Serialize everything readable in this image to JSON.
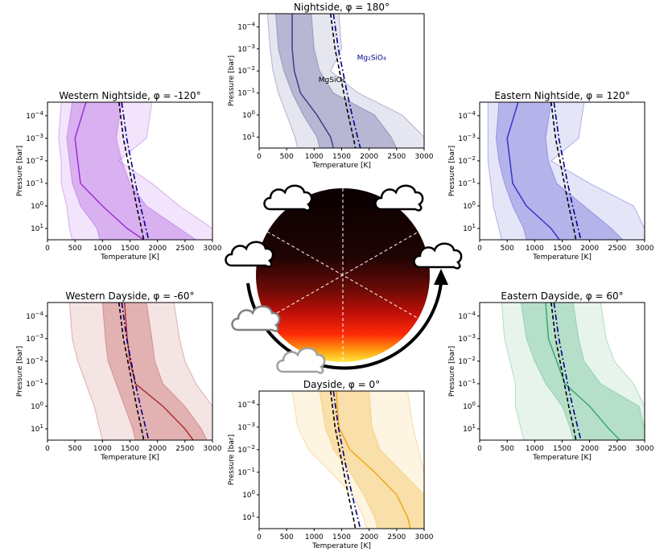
{
  "chart_data": {
    "type": "line",
    "layout": "six temperature-pressure panels arranged around a central planet disk",
    "shared_axes": {
      "xlabel": "Temperature [K]",
      "ylabel": "Pressure [bar]",
      "xlim": [
        0,
        3000
      ],
      "x_ticks": [
        "0",
        "500",
        "1000",
        "1500",
        "2000",
        "2500",
        "3000"
      ],
      "ylim_log10": [
        1.5,
        -4.6
      ],
      "y_scale": "log",
      "y_inverted": true,
      "y_tick_exponents": [
        "-4",
        "-3",
        "-2",
        "-1",
        "0",
        "1"
      ]
    },
    "condensation_curves": [
      {
        "name": "MgSiO₃",
        "style": "dashed",
        "color": "#000000",
        "points": [
          [
            1300,
            -4.6
          ],
          [
            1380,
            -3
          ],
          [
            1460,
            -2
          ],
          [
            1540,
            -1
          ],
          [
            1620,
            0
          ],
          [
            1710,
            1
          ],
          [
            1750,
            1.5
          ]
        ]
      },
      {
        "name": "Mg₂SiO₄",
        "style": "dashdot",
        "color": "#00008b",
        "points": [
          [
            1350,
            -4.6
          ],
          [
            1440,
            -3
          ],
          [
            1520,
            -2
          ],
          [
            1600,
            -1
          ],
          [
            1690,
            0
          ],
          [
            1790,
            1
          ],
          [
            1840,
            1.5
          ]
        ]
      }
    ],
    "panels": [
      {
        "title": "Nightside, φ = 180°",
        "color": "#3d3d8a",
        "show_labels": true,
        "median": [
          [
            600,
            -4.6
          ],
          [
            600,
            -3
          ],
          [
            640,
            -2
          ],
          [
            750,
            -1
          ],
          [
            1050,
            0
          ],
          [
            1300,
            1
          ],
          [
            1350,
            1.5
          ]
        ],
        "inner": [
          [
            300,
            -4.6
          ],
          [
            350,
            -3
          ],
          [
            450,
            -2
          ],
          [
            600,
            -1
          ],
          [
            800,
            0
          ],
          [
            1050,
            1
          ],
          [
            1100,
            1.5
          ]
        ],
        "inner_hi": [
          [
            950,
            -4.6
          ],
          [
            1000,
            -3
          ],
          [
            1100,
            -2
          ],
          [
            1350,
            -1
          ],
          [
            2100,
            0
          ],
          [
            2400,
            1
          ],
          [
            2500,
            1.5
          ]
        ],
        "outer_lo": [
          [
            150,
            -4.6
          ],
          [
            200,
            -3
          ],
          [
            250,
            -2
          ],
          [
            350,
            -1
          ],
          [
            500,
            0
          ],
          [
            650,
            1
          ],
          [
            700,
            1.5
          ]
        ],
        "outer_hi": [
          [
            1450,
            -4.6
          ],
          [
            1500,
            -3
          ],
          [
            1300,
            -2
          ],
          [
            1800,
            -1
          ],
          [
            2600,
            0
          ],
          [
            3000,
            1
          ],
          [
            3000,
            1.5
          ]
        ]
      },
      {
        "title": "Western Nightside, φ = -120°",
        "color": "#9b30d9",
        "median": [
          [
            700,
            -4.6
          ],
          [
            500,
            -3
          ],
          [
            550,
            -2
          ],
          [
            600,
            -1
          ],
          [
            1000,
            0
          ],
          [
            1450,
            1
          ],
          [
            1750,
            1.5
          ]
        ],
        "inner": [
          [
            450,
            -4.6
          ],
          [
            350,
            -3
          ],
          [
            400,
            -2
          ],
          [
            450,
            -1
          ],
          [
            600,
            0
          ],
          [
            900,
            1
          ],
          [
            950,
            1.5
          ]
        ],
        "inner_hi": [
          [
            1350,
            -4.6
          ],
          [
            1250,
            -3
          ],
          [
            1350,
            -2
          ],
          [
            1500,
            -1
          ],
          [
            1800,
            0
          ],
          [
            2400,
            1
          ],
          [
            2700,
            1.5
          ]
        ],
        "outer_lo": [
          [
            250,
            -4.6
          ],
          [
            200,
            -3
          ],
          [
            250,
            -2
          ],
          [
            250,
            -1
          ],
          [
            350,
            0
          ],
          [
            400,
            1
          ],
          [
            450,
            1.5
          ]
        ],
        "outer_hi": [
          [
            1900,
            -4.6
          ],
          [
            1800,
            -3
          ],
          [
            1300,
            -2
          ],
          [
            1900,
            -1
          ],
          [
            2400,
            0
          ],
          [
            3000,
            1
          ],
          [
            3000,
            1.5
          ]
        ]
      },
      {
        "title": "Eastern Nightside, φ = 120°",
        "color": "#3535c9",
        "median": [
          [
            700,
            -4.6
          ],
          [
            500,
            -3
          ],
          [
            550,
            -2
          ],
          [
            600,
            -1
          ],
          [
            850,
            0
          ],
          [
            1300,
            1
          ],
          [
            1450,
            1.5
          ]
        ],
        "inner": [
          [
            350,
            -4.6
          ],
          [
            300,
            -3
          ],
          [
            350,
            -2
          ],
          [
            450,
            -1
          ],
          [
            600,
            0
          ],
          [
            800,
            1
          ],
          [
            850,
            1.5
          ]
        ],
        "inner_hi": [
          [
            1300,
            -4.6
          ],
          [
            1200,
            -3
          ],
          [
            1250,
            -2
          ],
          [
            1400,
            -1
          ],
          [
            1900,
            0
          ],
          [
            2400,
            1
          ],
          [
            2600,
            1.5
          ]
        ],
        "outer_lo": [
          [
            150,
            -4.6
          ],
          [
            150,
            -3
          ],
          [
            150,
            -2
          ],
          [
            200,
            -1
          ],
          [
            250,
            0
          ],
          [
            350,
            1
          ],
          [
            400,
            1.5
          ]
        ],
        "outer_hi": [
          [
            1900,
            -4.6
          ],
          [
            1800,
            -3
          ],
          [
            1300,
            -2
          ],
          [
            2000,
            -1
          ],
          [
            2800,
            0
          ],
          [
            3000,
            1
          ],
          [
            3000,
            1.5
          ]
        ]
      },
      {
        "title": "Western Dayside, φ = -60°",
        "color": "#b03030",
        "median": [
          [
            1400,
            -4.6
          ],
          [
            1450,
            -3
          ],
          [
            1500,
            -2
          ],
          [
            1600,
            -1
          ],
          [
            2100,
            0
          ],
          [
            2500,
            1
          ],
          [
            2650,
            1.5
          ]
        ],
        "inner": [
          [
            1000,
            -4.6
          ],
          [
            1050,
            -3
          ],
          [
            1100,
            -2
          ],
          [
            1250,
            -1
          ],
          [
            1400,
            0
          ],
          [
            1550,
            1
          ],
          [
            1600,
            1.5
          ]
        ],
        "inner_hi": [
          [
            1800,
            -4.6
          ],
          [
            1900,
            -3
          ],
          [
            1950,
            -2
          ],
          [
            2100,
            -1
          ],
          [
            2500,
            0
          ],
          [
            2800,
            1
          ],
          [
            2900,
            1.5
          ]
        ],
        "outer_lo": [
          [
            400,
            -4.6
          ],
          [
            450,
            -3
          ],
          [
            550,
            -2
          ],
          [
            700,
            -1
          ],
          [
            850,
            0
          ],
          [
            950,
            1
          ],
          [
            1000,
            1.5
          ]
        ],
        "outer_hi": [
          [
            2300,
            -4.6
          ],
          [
            2400,
            -3
          ],
          [
            2500,
            -2
          ],
          [
            2700,
            -1
          ],
          [
            3000,
            0
          ],
          [
            3000,
            1
          ],
          [
            3000,
            1.5
          ]
        ]
      },
      {
        "title": "Eastern Dayside, φ = 60°",
        "color": "#3aa870",
        "median": [
          [
            1200,
            -4.6
          ],
          [
            1250,
            -3
          ],
          [
            1400,
            -2
          ],
          [
            1550,
            -1
          ],
          [
            2000,
            0
          ],
          [
            2350,
            1
          ],
          [
            2550,
            1.5
          ]
        ],
        "inner": [
          [
            750,
            -4.6
          ],
          [
            850,
            -3
          ],
          [
            1000,
            -2
          ],
          [
            1200,
            -1
          ],
          [
            1500,
            0
          ],
          [
            1650,
            1
          ],
          [
            1700,
            1.5
          ]
        ],
        "inner_hi": [
          [
            1700,
            -4.6
          ],
          [
            1800,
            -3
          ],
          [
            1900,
            -2
          ],
          [
            2200,
            -1
          ],
          [
            2900,
            0
          ],
          [
            3000,
            1
          ],
          [
            3000,
            1.5
          ]
        ],
        "outer_lo": [
          [
            400,
            -4.6
          ],
          [
            450,
            -3
          ],
          [
            550,
            -2
          ],
          [
            650,
            -1
          ],
          [
            650,
            0
          ],
          [
            750,
            1
          ],
          [
            800,
            1.5
          ]
        ],
        "outer_hi": [
          [
            2200,
            -4.6
          ],
          [
            2300,
            -3
          ],
          [
            2450,
            -2
          ],
          [
            2800,
            -1
          ],
          [
            3000,
            0
          ],
          [
            3000,
            1
          ],
          [
            3000,
            1.5
          ]
        ]
      },
      {
        "title": "Dayside, φ = 0°",
        "color": "#f0a818",
        "median": [
          [
            1400,
            -4.6
          ],
          [
            1450,
            -3
          ],
          [
            1650,
            -2
          ],
          [
            2100,
            -1
          ],
          [
            2500,
            0
          ],
          [
            2700,
            1
          ],
          [
            2750,
            1.5
          ]
        ],
        "inner": [
          [
            1100,
            -4.6
          ],
          [
            1200,
            -3
          ],
          [
            1350,
            -2
          ],
          [
            1650,
            -1
          ],
          [
            1900,
            0
          ],
          [
            2100,
            1
          ],
          [
            2150,
            1.5
          ]
        ],
        "inner_hi": [
          [
            2000,
            -4.6
          ],
          [
            2050,
            -3
          ],
          [
            2200,
            -2
          ],
          [
            2600,
            -1
          ],
          [
            3000,
            0
          ],
          [
            3000,
            1
          ],
          [
            3000,
            1.5
          ]
        ],
        "outer_lo": [
          [
            600,
            -4.6
          ],
          [
            700,
            -3
          ],
          [
            900,
            -2
          ],
          [
            1300,
            -1
          ],
          [
            1700,
            0
          ],
          [
            1900,
            1
          ],
          [
            1950,
            1.5
          ]
        ],
        "outer_hi": [
          [
            2700,
            -4.6
          ],
          [
            2800,
            -3
          ],
          [
            2900,
            -2
          ],
          [
            3000,
            -1
          ],
          [
            3000,
            0
          ],
          [
            3000,
            1
          ],
          [
            3000,
            1.5
          ]
        ]
      }
    ]
  }
}
